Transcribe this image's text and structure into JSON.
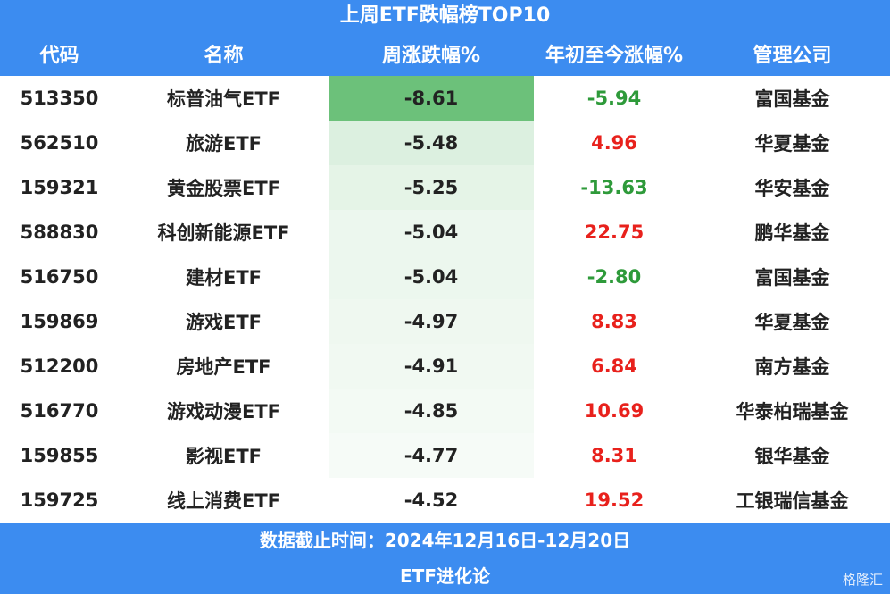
{
  "title": "上周ETF跌幅榜TOP10",
  "table": {
    "headers": [
      "代码",
      "名称",
      "周涨跌幅%",
      "年初至今涨幅%",
      "管理公司"
    ],
    "rows": [
      [
        "513350",
        "标普油气ETF",
        "-8.61",
        "-5.94",
        "富国基金"
      ],
      [
        "562510",
        "旅游ETF",
        "-5.48",
        "4.96",
        "华夏基金"
      ],
      [
        "159321",
        "黄金股票ETF",
        "-5.25",
        "-13.63",
        "华安基金"
      ],
      [
        "588830",
        "科创新能源ETF",
        "-5.04",
        "22.75",
        "鹏华基金"
      ],
      [
        "516750",
        "建材ETF",
        "-5.04",
        "-2.80",
        "富国基金"
      ],
      [
        "159869",
        "游戏ETF",
        "-4.97",
        "8.83",
        "华夏基金"
      ],
      [
        "512200",
        "房地产ETF",
        "-4.91",
        "6.84",
        "南方基金"
      ],
      [
        "516770",
        "游戏动漫ETF",
        "-4.85",
        "10.69",
        "华泰柏瑞基金"
      ],
      [
        "159855",
        "影视ETF",
        "-4.77",
        "8.31",
        "银华基金"
      ],
      [
        "159725",
        "线上消费ETF",
        "-4.52",
        "19.52",
        "工银瑞信基金"
      ]
    ],
    "heat_color": "#6cc17a",
    "positive_color": "#e8211c",
    "negative_color": "#2e9a3a"
  },
  "footer": {
    "date": "数据截止时间：2024年12月16日-12月20日",
    "source": "ETF进化论"
  },
  "watermark": "格隆汇"
}
